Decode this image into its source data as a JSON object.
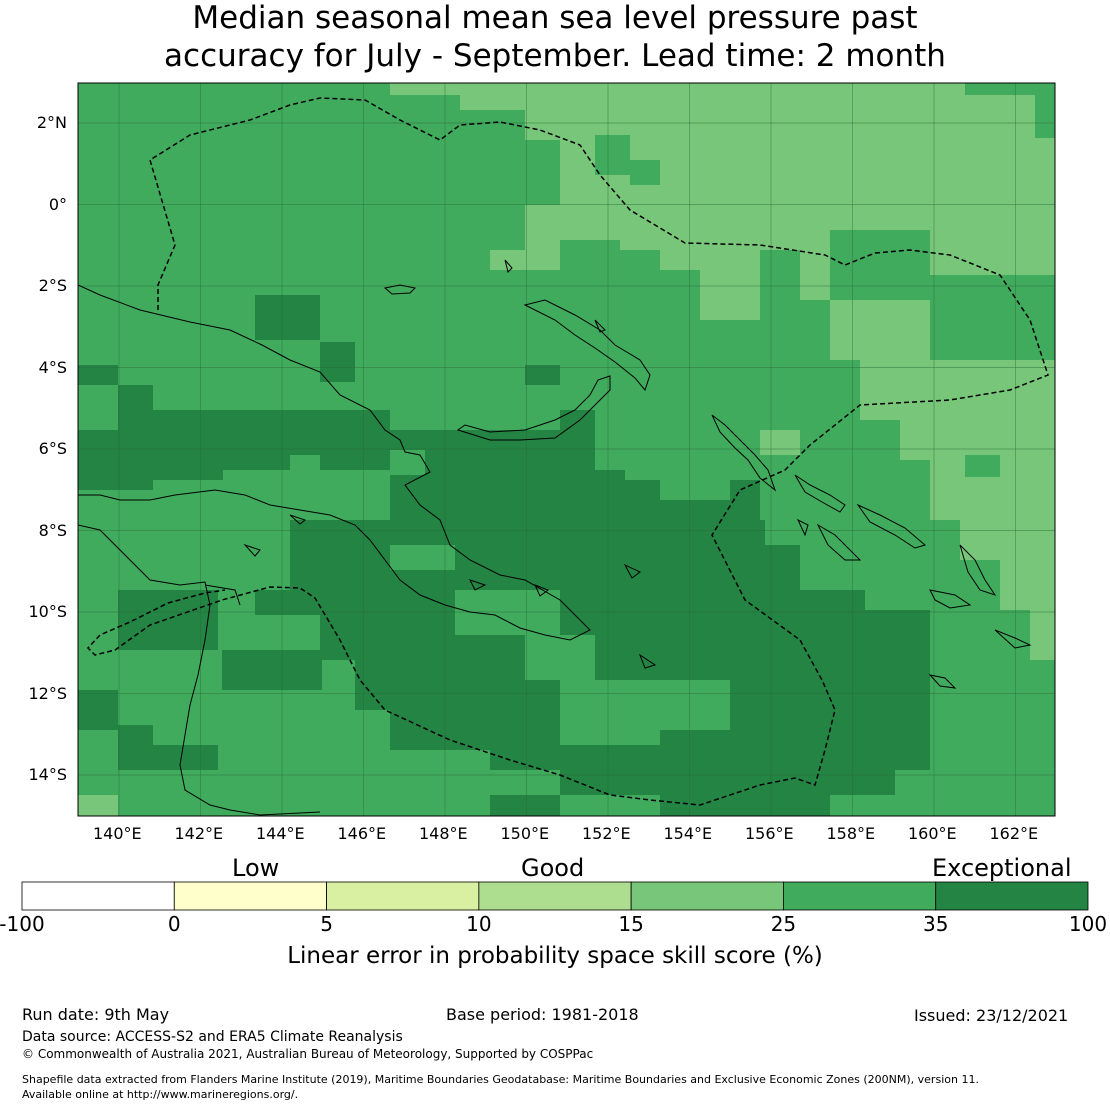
{
  "title": {
    "line1": "Median seasonal mean sea level pressure past",
    "line2": "accuracy for July - September. Lead time: 2 month"
  },
  "map": {
    "lon_labels": [
      "140°E",
      "142°E",
      "144°E",
      "146°E",
      "148°E",
      "150°E",
      "152°E",
      "154°E",
      "156°E",
      "158°E",
      "160°E",
      "162°E"
    ],
    "lat_labels": [
      "2°N",
      "0°",
      "2°S",
      "4°S",
      "6°S",
      "8°S",
      "10°S",
      "12°S",
      "14°S"
    ]
  },
  "legend": {
    "categories": [
      "Low",
      "Good",
      "Exceptional"
    ],
    "ticks": [
      "-100",
      "0",
      "5",
      "10",
      "15",
      "25",
      "35",
      "100"
    ],
    "colors": [
      "#ffffff",
      "#ffffcc",
      "#d9f0a3",
      "#addd8e",
      "#78c679",
      "#41ab5d",
      "#238443"
    ],
    "label": "Linear error in probability space skill score (%)"
  },
  "footer": {
    "run_date": "Run date: 9th May",
    "base_period": "Base period: 1981-2018",
    "issued": "Issued: 23/12/2021",
    "data_source": "Data source: ACCESS-S2 and ERA5 Climate Reanalysis",
    "copyright": "© Commonwealth of Australia 2021, Australian Bureau of Meteorology, Supported by COSPPac",
    "shapefile1": "Shapefile data extracted from Flanders Marine Institute (2019), Maritime Boundaries Geodatabase: Maritime Boundaries and Exclusive Economic Zones (200NM), version 11.",
    "shapefile2": "Available online at http://www.marineregions.org/."
  }
}
